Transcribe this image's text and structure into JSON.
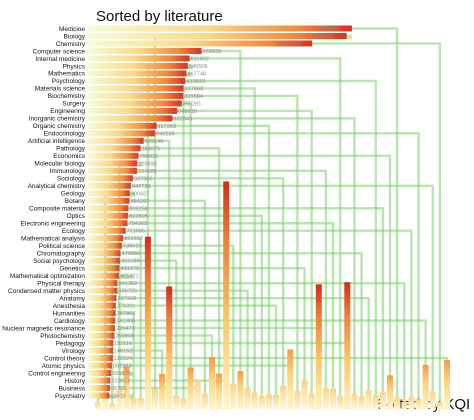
{
  "chart_data": {
    "type": "bar",
    "title": "Sorted by literature",
    "right_title": "Sorted by KQI",
    "categories": [
      "Medicine",
      "Biology",
      "Chemistry",
      "Computer science",
      "Internal medicine",
      "Physics",
      "Mathematics",
      "Psychology",
      "Materials science",
      "Biochemistry",
      "Surgery",
      "Engineering",
      "Inorganic chemistry",
      "Organic chemistry",
      "Endocrinology",
      "Artificial intelligence",
      "Pathology",
      "Economics",
      "Molecular biology",
      "Immunology",
      "Sociology",
      "Analytical chemistry",
      "Geology",
      "Botany",
      "Composite material",
      "Optics",
      "Electronic engineering",
      "Ecology",
      "Mathematical analysis",
      "Political science",
      "Chromatography",
      "Social psychology",
      "Genetics",
      "Mathematical optimization",
      "Physical therapy",
      "Condensed matter physics",
      "Anatomy",
      "Anesthesia",
      "Humanities",
      "Cardiology",
      "Nuclear magnetic resonance",
      "Photochemistry",
      "Pedagogy",
      "Virology",
      "Control theory",
      "Atomic physics",
      "Control engineering",
      "History",
      "Business",
      "Psychiatry"
    ],
    "values": [
      11995366,
      11756281,
      10190768,
      5159933,
      4611902,
      4540506,
      4467748,
      4419933,
      4337868,
      4325564,
      4255281,
      4048618,
      3832943,
      3117393,
      3040235,
      2529146,
      2384075,
      2290916,
      2229490,
      2224285,
      2037996,
      1947738,
      1900607,
      1884297,
      1835256,
      1822805,
      1794363,
      1711665,
      1601662,
      1538631,
      1479866,
      1451589,
      1431375,
      1405421,
      1341352,
      1336725,
      1297206,
      1271311,
      1257806,
      1241305,
      1225471,
      1203808,
      1151116,
      1146152,
      1131024,
      1082383,
      1051225,
      1010924,
      996705,
      969413
    ],
    "value_labels": [
      "11995366",
      "11756281",
      "10190768",
      "5159933",
      "4611902",
      "4540506",
      "4467748",
      "4419933",
      "4337868",
      "4325564",
      "4255281",
      "4048618",
      "3832943",
      "3117393",
      "3040235",
      "2529146",
      "2384075",
      "2290916",
      "2229490",
      "2224285",
      "2037996",
      "1947738",
      "1900607",
      "1884297",
      "1835256",
      "1822805",
      "1794363",
      "1711665",
      "1601662",
      "1538631",
      "1479866",
      "1451589",
      "1431375",
      "1405421",
      "1341352",
      "1336725",
      "1297206",
      "1271311",
      "1257806",
      "1241305",
      "1225471",
      "1203808",
      "1151116",
      "1146152",
      "1131024",
      "1082383",
      "1051225",
      "1010924",
      "996705",
      "969413"
    ],
    "kqi_ranks": [
      42,
      8,
      48,
      20,
      34,
      7,
      12,
      39,
      22,
      28,
      13,
      30,
      36,
      24,
      45,
      10,
      17,
      41,
      3,
      32,
      26,
      47,
      1,
      15,
      40,
      23,
      33,
      44,
      6,
      19,
      37,
      11,
      29,
      2,
      43,
      21,
      38,
      25,
      5,
      46,
      31,
      16,
      35,
      9,
      49,
      27,
      4,
      18,
      14,
      0
    ],
    "kqi_values": [
      3.5,
      5.9,
      2.2,
      11,
      3.9,
      49.0,
      3.2,
      4.2,
      4.9,
      5.4,
      12,
      4.7,
      4.6,
      4.4,
      3.1,
      34.9,
      10.3,
      9.8,
      5.7,
      6.2,
      6.8,
      5.3,
      5.0,
      4.5,
      5.1,
      4.0,
      6.0,
      3.6,
      3.4,
      7.5,
      3.8,
      4.1,
      8.6,
      1.8,
      2.3,
      6.4,
      5.6,
      4.3,
      3.3,
      12.8,
      35.5,
      14.9,
      36.1,
      10.2,
      14.1,
      17.1,
      12.2,
      64.6,
      8.4,
      2.1
    ],
    "xlim": [
      0,
      12000000
    ],
    "grid": false,
    "legend": "none"
  }
}
